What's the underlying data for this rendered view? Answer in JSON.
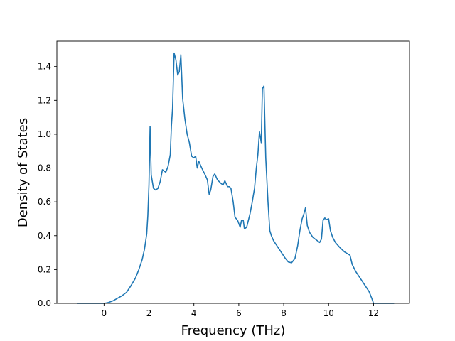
{
  "chart_data": {
    "type": "line",
    "title": "",
    "xlabel": "Frequency (THz)",
    "ylabel": "Density of States",
    "xlim": [
      -2.1,
      13.6
    ],
    "ylim": [
      0.0,
      1.55
    ],
    "x_ticks": [
      0,
      2,
      4,
      6,
      8,
      10,
      12
    ],
    "y_ticks": [
      0.0,
      0.2,
      0.4,
      0.6,
      0.8,
      1.0,
      1.2,
      1.4
    ],
    "grid": false,
    "legend": "none",
    "series": [
      {
        "color": "#1f77b4",
        "points": [
          [
            -1.18,
            0.0
          ],
          [
            -0.5,
            0.0
          ],
          [
            0.0,
            0.0
          ],
          [
            0.2,
            0.005
          ],
          [
            0.4,
            0.015
          ],
          [
            0.6,
            0.03
          ],
          [
            0.8,
            0.045
          ],
          [
            1.0,
            0.065
          ],
          [
            1.2,
            0.105
          ],
          [
            1.4,
            0.15
          ],
          [
            1.55,
            0.2
          ],
          [
            1.7,
            0.26
          ],
          [
            1.8,
            0.32
          ],
          [
            1.9,
            0.41
          ],
          [
            1.95,
            0.52
          ],
          [
            2.0,
            0.7
          ],
          [
            2.05,
            1.045
          ],
          [
            2.1,
            0.76
          ],
          [
            2.2,
            0.68
          ],
          [
            2.3,
            0.67
          ],
          [
            2.4,
            0.68
          ],
          [
            2.5,
            0.72
          ],
          [
            2.6,
            0.79
          ],
          [
            2.75,
            0.775
          ],
          [
            2.85,
            0.81
          ],
          [
            2.95,
            0.88
          ],
          [
            3.0,
            1.05
          ],
          [
            3.05,
            1.15
          ],
          [
            3.12,
            1.48
          ],
          [
            3.2,
            1.44
          ],
          [
            3.28,
            1.35
          ],
          [
            3.35,
            1.37
          ],
          [
            3.42,
            1.47
          ],
          [
            3.5,
            1.21
          ],
          [
            3.6,
            1.09
          ],
          [
            3.7,
            1.0
          ],
          [
            3.8,
            0.95
          ],
          [
            3.9,
            0.87
          ],
          [
            4.0,
            0.86
          ],
          [
            4.08,
            0.87
          ],
          [
            4.15,
            0.8
          ],
          [
            4.22,
            0.84
          ],
          [
            4.35,
            0.8
          ],
          [
            4.5,
            0.76
          ],
          [
            4.6,
            0.73
          ],
          [
            4.68,
            0.645
          ],
          [
            4.75,
            0.67
          ],
          [
            4.85,
            0.75
          ],
          [
            4.93,
            0.765
          ],
          [
            5.05,
            0.73
          ],
          [
            5.2,
            0.71
          ],
          [
            5.3,
            0.7
          ],
          [
            5.38,
            0.725
          ],
          [
            5.5,
            0.69
          ],
          [
            5.58,
            0.69
          ],
          [
            5.65,
            0.68
          ],
          [
            5.75,
            0.6
          ],
          [
            5.83,
            0.51
          ],
          [
            5.95,
            0.49
          ],
          [
            6.06,
            0.45
          ],
          [
            6.12,
            0.49
          ],
          [
            6.2,
            0.49
          ],
          [
            6.25,
            0.44
          ],
          [
            6.35,
            0.45
          ],
          [
            6.5,
            0.53
          ],
          [
            6.6,
            0.6
          ],
          [
            6.7,
            0.68
          ],
          [
            6.78,
            0.8
          ],
          [
            6.85,
            0.88
          ],
          [
            6.92,
            1.015
          ],
          [
            7.0,
            0.95
          ],
          [
            7.05,
            1.27
          ],
          [
            7.12,
            1.285
          ],
          [
            7.2,
            0.86
          ],
          [
            7.3,
            0.6
          ],
          [
            7.38,
            0.43
          ],
          [
            7.45,
            0.4
          ],
          [
            7.55,
            0.37
          ],
          [
            7.7,
            0.34
          ],
          [
            7.9,
            0.3
          ],
          [
            8.05,
            0.27
          ],
          [
            8.2,
            0.245
          ],
          [
            8.35,
            0.24
          ],
          [
            8.5,
            0.265
          ],
          [
            8.62,
            0.34
          ],
          [
            8.72,
            0.43
          ],
          [
            8.82,
            0.5
          ],
          [
            8.9,
            0.53
          ],
          [
            8.97,
            0.565
          ],
          [
            9.05,
            0.46
          ],
          [
            9.15,
            0.42
          ],
          [
            9.3,
            0.39
          ],
          [
            9.5,
            0.37
          ],
          [
            9.6,
            0.36
          ],
          [
            9.68,
            0.38
          ],
          [
            9.75,
            0.49
          ],
          [
            9.83,
            0.505
          ],
          [
            9.9,
            0.495
          ],
          [
            10.0,
            0.5
          ],
          [
            10.08,
            0.43
          ],
          [
            10.18,
            0.39
          ],
          [
            10.3,
            0.36
          ],
          [
            10.5,
            0.33
          ],
          [
            10.7,
            0.305
          ],
          [
            10.95,
            0.285
          ],
          [
            11.05,
            0.23
          ],
          [
            11.2,
            0.19
          ],
          [
            11.4,
            0.15
          ],
          [
            11.6,
            0.11
          ],
          [
            11.8,
            0.07
          ],
          [
            11.92,
            0.03
          ],
          [
            12.0,
            0.0
          ],
          [
            12.3,
            0.0
          ],
          [
            12.9,
            0.0
          ]
        ]
      }
    ]
  }
}
